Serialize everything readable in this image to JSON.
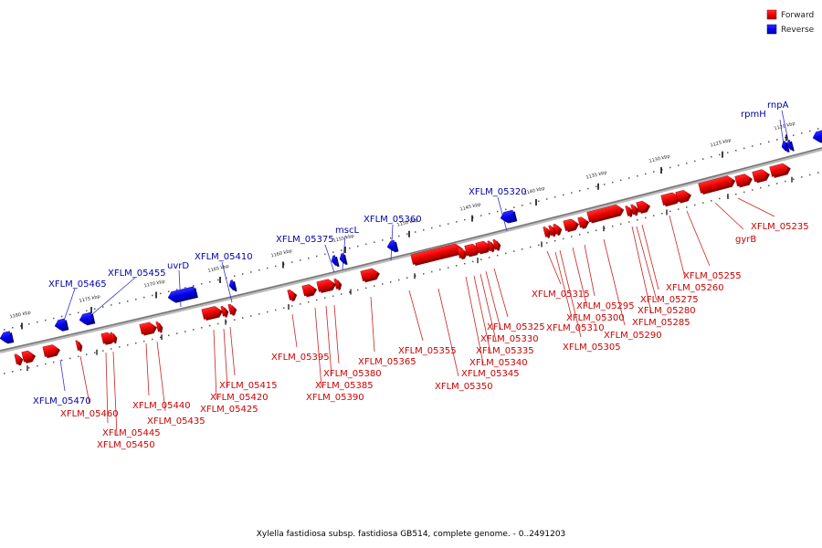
{
  "caption": "Xylella fastidiosa subsp. fastidiosa GB514, complete genome. - 0..2491203",
  "colors": {
    "forward": "#ee0000",
    "forward_dark": "#990000",
    "reverse": "#0000ee",
    "reverse_dark": "#000099",
    "backbone": "#888888",
    "label_forward": "#cc0000",
    "label_reverse": "#0000aa"
  },
  "legend": [
    {
      "label": "Forward",
      "strand": "forward"
    },
    {
      "label": "Reverse",
      "strand": "reverse"
    }
  ],
  "ticks": [
    {
      "label": "1180 kbp"
    },
    {
      "label": "1175 kbp"
    },
    {
      "label": "1170 kbp"
    },
    {
      "label": "1165 kbp"
    },
    {
      "label": "1160 kbp"
    },
    {
      "label": "1155 kbp"
    },
    {
      "label": "1150 kbp"
    },
    {
      "label": "1145 kbp"
    },
    {
      "label": "1140 kbp"
    },
    {
      "label": "1135 kbp"
    },
    {
      "label": "1130 kbp"
    },
    {
      "label": "1125 kbp"
    },
    {
      "label": "1120 kbp"
    }
  ],
  "reverse_labels": [
    "XFLM_05465",
    "XFLM_05455",
    "uvrD",
    "XFLM_05410",
    "XFLM_05375",
    "mscL",
    "XFLM_05360",
    "XFLM_05320",
    "rpmH",
    "rnpA",
    "XFLM_05470"
  ],
  "forward_labels": [
    "XFLM_05460",
    "XFLM_05445",
    "XFLM_05450",
    "XFLM_05440",
    "XFLM_05435",
    "XFLM_05415",
    "XFLM_05420",
    "XFLM_05425",
    "XFLM_05395",
    "XFLM_05380",
    "XFLM_05385",
    "XFLM_05390",
    "XFLM_05365",
    "XFLM_05355",
    "XFLM_05350",
    "XFLM_05345",
    "XFLM_05340",
    "XFLM_05335",
    "XFLM_05330",
    "XFLM_05325",
    "XFLM_05315",
    "XFLM_05295",
    "XFLM_05300",
    "XFLM_05310",
    "XFLM_05305",
    "XFLM_05290",
    "XFLM_05285",
    "XFLM_05280",
    "XFLM_05275",
    "XFLM_05260",
    "XFLM_05255",
    "gyrB",
    "XFLM_05235"
  ]
}
